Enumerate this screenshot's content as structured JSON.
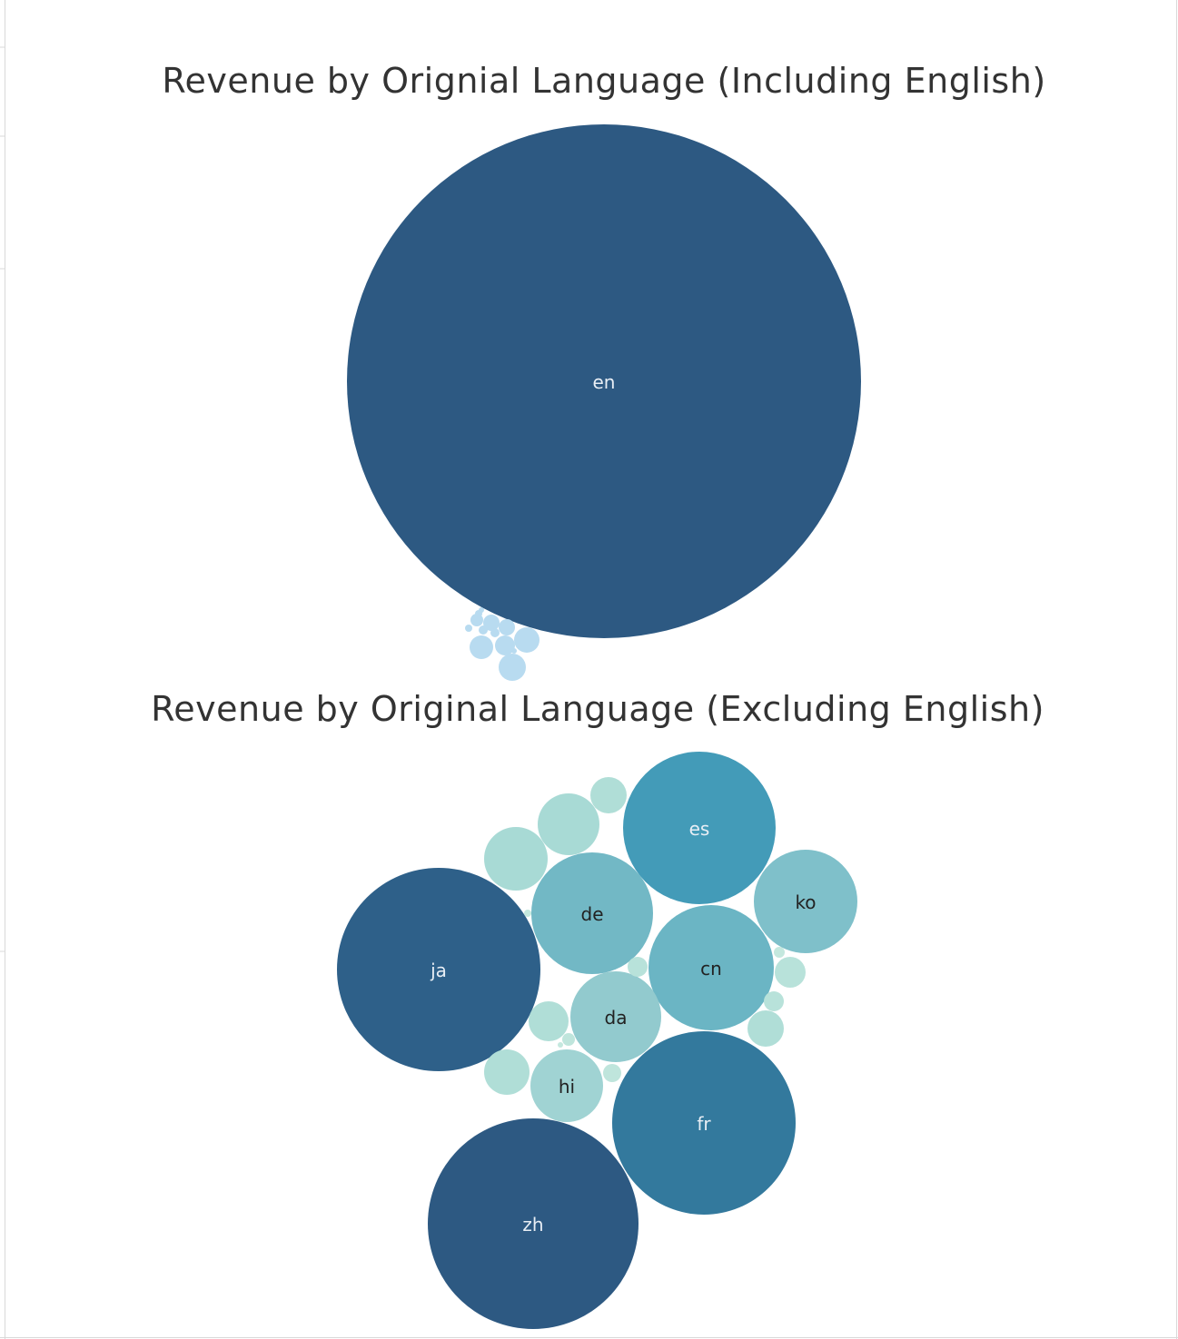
{
  "chart_data": [
    {
      "type": "bubble",
      "title": "Revenue by Orignial Language (Including English)",
      "label_color_dark_bg": "#e8eef5",
      "label_color_light_bg": "#222222",
      "bubbles": [
        {
          "label": "en",
          "color": "#2d5982",
          "shows_label": true
        },
        {
          "label": "",
          "color": "#b8dbf0",
          "shows_label": false
        },
        {
          "label": "",
          "color": "#b8dbf0",
          "shows_label": false
        },
        {
          "label": "",
          "color": "#b8dbf0",
          "shows_label": false
        },
        {
          "label": "",
          "color": "#b8dbf0",
          "shows_label": false
        },
        {
          "label": "",
          "color": "#b8dbf0",
          "shows_label": false
        },
        {
          "label": "",
          "color": "#b8dbf0",
          "shows_label": false
        },
        {
          "label": "",
          "color": "#b8dbf0",
          "shows_label": false
        },
        {
          "label": "",
          "color": "#b8dbf0",
          "shows_label": false
        },
        {
          "label": "",
          "color": "#b8dbf0",
          "shows_label": false
        },
        {
          "label": "",
          "color": "#b8dbf0",
          "shows_label": false
        },
        {
          "label": "",
          "color": "#b8dbf0",
          "shows_label": false
        },
        {
          "label": "",
          "color": "#b8dbf0",
          "shows_label": false
        },
        {
          "label": "",
          "color": "#b8dbf0",
          "shows_label": false
        }
      ]
    },
    {
      "type": "bubble",
      "title": "Revenue by Original Language (Excluding English)",
      "label_color_dark_bg": "#e8eef5",
      "label_color_light_bg": "#222222",
      "bubbles": [
        {
          "label": "zh",
          "color": "#2d5982",
          "shows_label": true
        },
        {
          "label": "ja",
          "color": "#2e6089",
          "shows_label": true
        },
        {
          "label": "fr",
          "color": "#33799d",
          "shows_label": true
        },
        {
          "label": "es",
          "color": "#439bb8",
          "shows_label": true
        },
        {
          "label": "cn",
          "color": "#6bb5c4",
          "shows_label": true
        },
        {
          "label": "de",
          "color": "#72b8c5",
          "shows_label": true
        },
        {
          "label": "ko",
          "color": "#7fc0ca",
          "shows_label": true
        },
        {
          "label": "da",
          "color": "#92cace",
          "shows_label": true
        },
        {
          "label": "hi",
          "color": "#a0d3d3",
          "shows_label": true
        },
        {
          "label": "",
          "color": "#a8dad5",
          "shows_label": false
        },
        {
          "label": "",
          "color": "#a8dad5",
          "shows_label": false
        },
        {
          "label": "",
          "color": "#b0ded7",
          "shows_label": false
        },
        {
          "label": "",
          "color": "#b0ded7",
          "shows_label": false
        },
        {
          "label": "",
          "color": "#b0ded7",
          "shows_label": false
        },
        {
          "label": "",
          "color": "#b0ded7",
          "shows_label": false
        },
        {
          "label": "",
          "color": "#b8e2da",
          "shows_label": false
        },
        {
          "label": "",
          "color": "#b8e2da",
          "shows_label": false
        },
        {
          "label": "",
          "color": "#b8e2da",
          "shows_label": false
        },
        {
          "label": "",
          "color": "#bfe5dc",
          "shows_label": false
        },
        {
          "label": "",
          "color": "#bfe5dc",
          "shows_label": false
        },
        {
          "label": "",
          "color": "#c4e8de",
          "shows_label": false
        },
        {
          "label": "",
          "color": "#c4e8de",
          "shows_label": false
        },
        {
          "label": "",
          "color": "#c4e8de",
          "shows_label": false
        }
      ]
    }
  ],
  "colors": {
    "background": "#ffffff",
    "title_text": "#333333",
    "frame_line": "#d9d9d9"
  }
}
